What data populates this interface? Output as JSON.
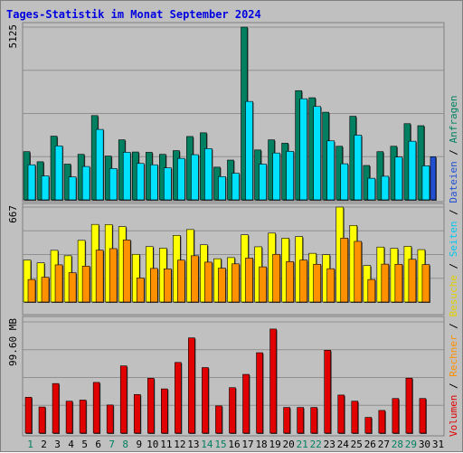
{
  "chart_data": [
    {
      "type": "bar",
      "title": "Tages-Statistik im Monat September 2024",
      "categories": [
        "1",
        "2",
        "3",
        "4",
        "5",
        "6",
        "7",
        "8",
        "9",
        "10",
        "11",
        "12",
        "13",
        "14",
        "15",
        "16",
        "17",
        "18",
        "19",
        "20",
        "21",
        "22",
        "23",
        "24",
        "25",
        "26",
        "27",
        "28",
        "29",
        "30",
        "31"
      ],
      "weekend_days": [
        "1",
        "7",
        "8",
        "14",
        "15",
        "21",
        "22",
        "28",
        "29"
      ],
      "ymax_label": "5125",
      "ylim": [
        0,
        5125
      ],
      "series": [
        {
          "name": "Anfragen",
          "color": "#008060",
          "values": [
            1430,
            1130,
            1890,
            1060,
            1350,
            2500,
            1300,
            1780,
            1420,
            1410,
            1350,
            1460,
            1880,
            1990,
            970,
            1180,
            5125,
            1480,
            1780,
            1680,
            3240,
            3030,
            2600,
            1590,
            2480,
            1020,
            1430,
            1590,
            2260,
            2200,
            null
          ]
        },
        {
          "name": "Dateien",
          "color": "#00e0ff",
          "values": [
            1040,
            710,
            1600,
            680,
            990,
            2090,
            930,
            1410,
            1080,
            1040,
            950,
            1230,
            1340,
            1520,
            690,
            790,
            2920,
            1060,
            1390,
            1440,
            3000,
            2770,
            1750,
            1070,
            1920,
            640,
            700,
            1270,
            1740,
            1010,
            null
          ]
        },
        {
          "name": "Seiten",
          "color": "#2050d0",
          "values": [
            null,
            null,
            null,
            null,
            null,
            null,
            null,
            null,
            null,
            null,
            null,
            null,
            null,
            null,
            null,
            null,
            null,
            null,
            null,
            null,
            null,
            null,
            null,
            null,
            null,
            null,
            null,
            null,
            null,
            1280,
            null
          ]
        }
      ]
    },
    {
      "type": "bar",
      "ymax_label": "667",
      "ylim": [
        0,
        667
      ],
      "series": [
        {
          "name": "Besuche",
          "color": "#ffff00",
          "values": [
            295,
            275,
            363,
            325,
            433,
            545,
            544,
            530,
            335,
            389,
            378,
            468,
            509,
            402,
            304,
            312,
            472,
            388,
            484,
            448,
            460,
            342,
            333,
            667,
            538,
            256,
            386,
            377,
            391,
            368,
            null
          ]
        },
        {
          "name": "Rechner",
          "color": "#ff9000",
          "values": [
            158,
            174,
            261,
            206,
            252,
            364,
            375,
            436,
            169,
            236,
            233,
            294,
            325,
            280,
            238,
            268,
            309,
            247,
            335,
            284,
            295,
            265,
            234,
            449,
            426,
            158,
            266,
            265,
            300,
            263,
            null
          ]
        }
      ]
    },
    {
      "type": "bar",
      "ymax_label": "99.60 MB",
      "ylim": [
        0,
        99.6
      ],
      "series": [
        {
          "name": "Volumen",
          "color": "#e00000",
          "values": [
            32.1,
            23.4,
            44.4,
            28.6,
            29.6,
            45.4,
            25.2,
            60.2,
            34.6,
            49.1,
            39.6,
            63.3,
            85.3,
            58.7,
            24.4,
            40.7,
            52.6,
            72.0,
            93.2,
            23.0,
            23.0,
            23.0,
            74.2,
            34.1,
            28.6,
            14.1,
            20.3,
            31.0,
            49.2,
            31.0,
            null
          ]
        }
      ]
    }
  ],
  "right_legend": [
    {
      "label": "Volumen",
      "color": "#e00000"
    },
    {
      "label": "Rechner",
      "color": "#ff9000"
    },
    {
      "label": "Besuche",
      "color": "#e0d000"
    },
    {
      "label": "Seiten",
      "color": "#00c8f0"
    },
    {
      "label": "Dateien",
      "color": "#2050d0"
    },
    {
      "label": "Anfragen",
      "color": "#008060"
    }
  ],
  "right_legend_separator": "/",
  "colors": {
    "background": "#c0c0c0",
    "plot_background": "#c0c0c0",
    "title": "#0000e0",
    "weekday_label": "#000000",
    "weekend_label": "#008060"
  }
}
